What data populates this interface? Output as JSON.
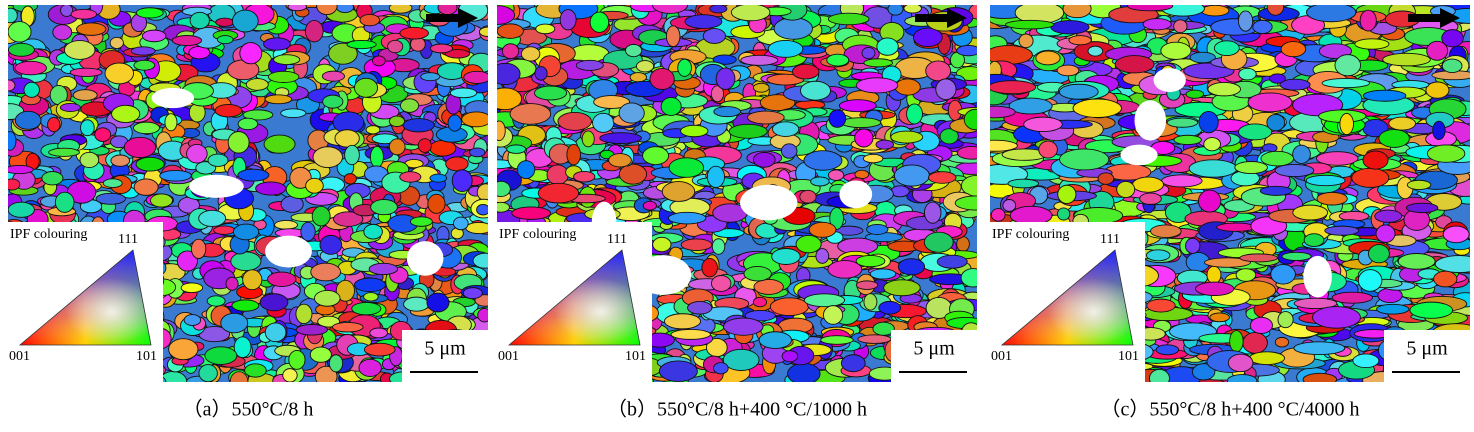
{
  "panels": [
    {
      "caption": "（a）550°C/8 h",
      "legend": {
        "title": "IPF colouring",
        "top": "111",
        "left": "001",
        "right": "101"
      },
      "scale_bar": "5 μm"
    },
    {
      "caption": "（b）550°C/8 h+400 °C/1000 h",
      "legend": {
        "title": "IPF colouring",
        "top": "111",
        "left": "001",
        "right": "101"
      },
      "scale_bar": "5 μm"
    },
    {
      "caption": "（c）550°C/8 h+400 °C/4000 h",
      "legend": {
        "title": "IPF colouring",
        "top": "111",
        "left": "001",
        "right": "101"
      },
      "scale_bar": "5 μm"
    }
  ]
}
